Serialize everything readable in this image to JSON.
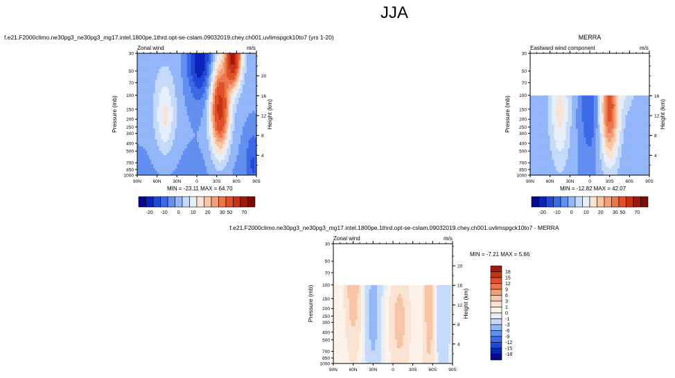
{
  "title": "JJA",
  "panels": {
    "model": {
      "run_title": "f.e21.F2000climo.ne30pg3_ne30pg3_mg17.intel.1800pe.1thrd.opt-se-cslam.09032019.chey.ch001.uvlimspgck10to7 (yrs 1-20)",
      "left_label": "Zonal wind",
      "units": "m/s",
      "min_max": "MIN = -23.11   MAX =  64.70"
    },
    "obs": {
      "run_title": "MERRA",
      "left_label": "Eastward wind component",
      "units": "m/s",
      "min_max": "MIN = -12.82   MAX =  42.07"
    },
    "diff": {
      "run_title": "f.e21.F2000climo.ne30pg3_ne30pg3_mg17.intel.1800pe.1thrd.opt-se-cslam.09032019.chey.ch001.uvlimspgck10to7 - MERRA",
      "left_label": "Zonal wind",
      "units": "m/s",
      "min_max": "MIN =  -7.21   MAX =   5.66"
    }
  },
  "chart_data": [
    {
      "type": "heatmap",
      "name": "model",
      "ylabel": "Pressure (mb)",
      "ylabel_right": "Height (km)",
      "y_ticks": [
        "30",
        "50",
        "70",
        "100",
        "150",
        "200",
        "250",
        "300",
        "400",
        "500",
        "700",
        "850",
        "1000"
      ],
      "y_right_ticks": [
        "20",
        "16",
        "12",
        "8",
        "4"
      ],
      "x_ticks": [
        "90N",
        "60N",
        "30N",
        "0",
        "30S",
        "60S",
        "90S"
      ],
      "min": -23.11,
      "max": 64.7,
      "data_top_mb": 30
    },
    {
      "type": "heatmap",
      "name": "obs",
      "ylabel": "Pressure (mb)",
      "ylabel_right": "Height (km)",
      "y_ticks": [
        "30",
        "50",
        "70",
        "100",
        "150",
        "200",
        "250",
        "300",
        "400",
        "500",
        "700",
        "850",
        "1000"
      ],
      "y_right_ticks": [
        "16",
        "12",
        "8",
        "4"
      ],
      "x_ticks": [
        "90N",
        "60N",
        "30N",
        "0",
        "30S",
        "60S",
        "90S"
      ],
      "min": -12.82,
      "max": 42.07,
      "data_top_mb": 100
    },
    {
      "type": "heatmap",
      "name": "diff",
      "ylabel": "Pressure (mb)",
      "ylabel_right": "Height (km)",
      "y_ticks": [
        "30",
        "50",
        "70",
        "100",
        "150",
        "200",
        "250",
        "300",
        "400",
        "500",
        "700",
        "850",
        "1000"
      ],
      "y_right_ticks": [
        "20",
        "16",
        "12",
        "8",
        "4"
      ],
      "x_ticks": [
        "90N",
        "60N",
        "30N",
        "0",
        "30S",
        "60S",
        "90S"
      ],
      "min": -7.21,
      "max": 5.66,
      "data_top_mb": 100
    }
  ],
  "colorbars": {
    "field": {
      "labels": [
        "-20",
        "-10",
        "0",
        "10",
        "20",
        "30",
        "50",
        "70"
      ],
      "colors": [
        "#08088a",
        "#0c23b8",
        "#1f48d6",
        "#3c6ae6",
        "#628ff0",
        "#92b6f7",
        "#c5daf9",
        "#e6eff9",
        "#fbe3d4",
        "#f7c4a6",
        "#f29e77",
        "#ec774d",
        "#df5128",
        "#c83214",
        "#a0170b",
        "#7a0a05"
      ]
    },
    "diff": {
      "labels": [
        "18",
        "15",
        "12",
        "9",
        "6",
        "3",
        "1",
        "0",
        "-1",
        "-3",
        "-6",
        "-9",
        "-12",
        "-15",
        "-18"
      ],
      "colors": [
        "#a0170b",
        "#c83214",
        "#df5128",
        "#ec774d",
        "#f29e77",
        "#f7c4a6",
        "#fbe3d4",
        "#fdf2ea",
        "#e6eff9",
        "#c5daf9",
        "#92b6f7",
        "#628ff0",
        "#3c6ae6",
        "#1f48d6",
        "#0c23b8",
        "#08088a"
      ]
    }
  }
}
